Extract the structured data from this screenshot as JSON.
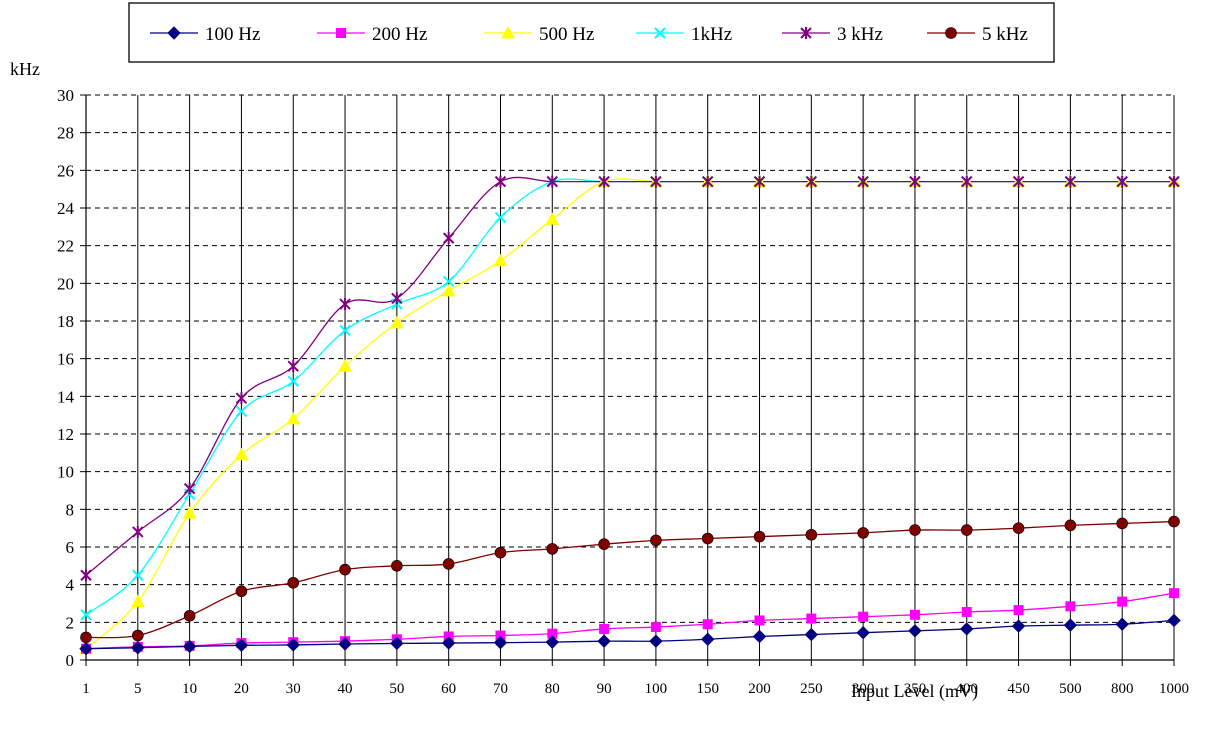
{
  "chart_data": {
    "type": "line",
    "ylabel": "kHz",
    "xlabel": "Input Level (mV)",
    "categories": [
      "1",
      "5",
      "10",
      "20",
      "30",
      "40",
      "50",
      "60",
      "70",
      "80",
      "90",
      "100",
      "150",
      "200",
      "250",
      "300",
      "350",
      "400",
      "450",
      "500",
      "800",
      "1000"
    ],
    "ylim": [
      0,
      30
    ],
    "yticks": [
      0,
      2,
      4,
      6,
      8,
      10,
      12,
      14,
      16,
      18,
      20,
      22,
      24,
      26,
      28,
      30
    ],
    "grid": {
      "horizontal": "dashed",
      "vertical": "solid"
    },
    "legend_position": "top",
    "series": [
      {
        "name": "100 Hz",
        "color": "#000080",
        "marker": "diamond",
        "values": [
          0.6,
          0.65,
          0.72,
          0.78,
          0.8,
          0.85,
          0.88,
          0.9,
          0.92,
          0.95,
          1.0,
          1.0,
          1.1,
          1.25,
          1.35,
          1.45,
          1.55,
          1.65,
          1.8,
          1.85,
          1.9,
          2.1
        ]
      },
      {
        "name": "200 Hz",
        "color": "#ff00ff",
        "marker": "square",
        "values": [
          0.6,
          0.7,
          0.75,
          0.9,
          0.95,
          1.0,
          1.1,
          1.25,
          1.3,
          1.4,
          1.65,
          1.75,
          1.9,
          2.1,
          2.2,
          2.3,
          2.4,
          2.55,
          2.65,
          2.85,
          3.1,
          3.55
        ]
      },
      {
        "name": "500 Hz",
        "color": "#ffff00",
        "marker": "triangle",
        "values": [
          0.6,
          3.1,
          7.8,
          10.9,
          12.8,
          15.6,
          17.9,
          19.6,
          21.2,
          23.4,
          25.4,
          25.4,
          25.4,
          25.4,
          25.4,
          25.4,
          25.4,
          25.4,
          25.4,
          25.4,
          25.4,
          25.4
        ]
      },
      {
        "name": "1kHz",
        "color": "#00ffff",
        "marker": "x",
        "values": [
          2.4,
          4.5,
          8.8,
          13.2,
          14.8,
          17.5,
          18.9,
          20.1,
          23.5,
          25.4,
          25.4,
          25.4,
          25.4,
          25.4,
          25.4,
          25.4,
          25.4,
          25.4,
          25.4,
          25.4,
          25.4,
          25.4
        ]
      },
      {
        "name": "3 kHz",
        "color": "#800080",
        "marker": "star",
        "values": [
          4.5,
          6.8,
          9.1,
          13.9,
          15.6,
          18.9,
          19.2,
          22.4,
          25.4,
          25.4,
          25.4,
          25.4,
          25.4,
          25.4,
          25.4,
          25.4,
          25.4,
          25.4,
          25.4,
          25.4,
          25.4,
          25.4
        ]
      },
      {
        "name": "5 kHz",
        "color": "#800000",
        "marker": "circle",
        "values": [
          1.2,
          1.3,
          2.35,
          3.65,
          4.1,
          4.8,
          5.0,
          5.1,
          5.7,
          5.9,
          6.15,
          6.35,
          6.45,
          6.55,
          6.65,
          6.75,
          6.9,
          6.9,
          7.0,
          7.15,
          7.25,
          7.35
        ]
      }
    ]
  }
}
